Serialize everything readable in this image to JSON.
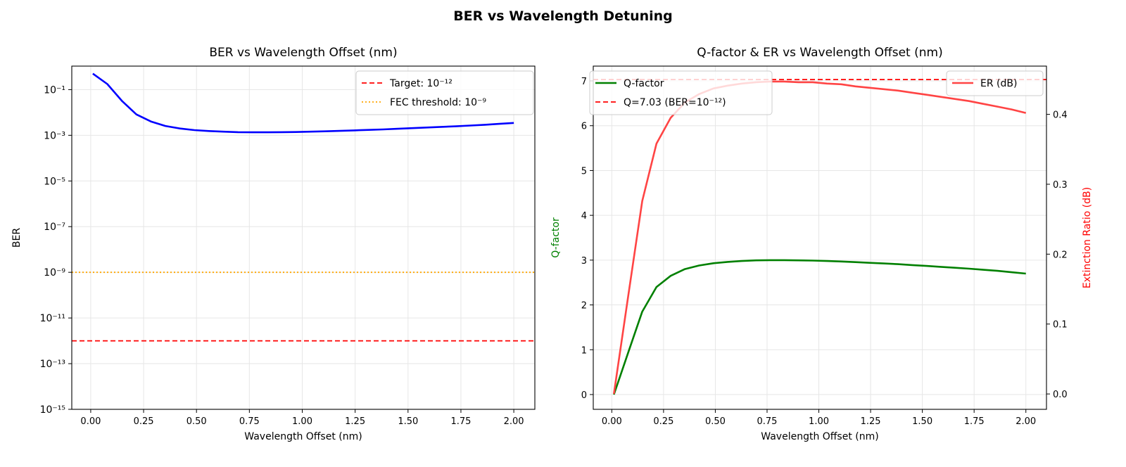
{
  "figure_title": "BER vs Wavelength Detuning",
  "colors": {
    "ber": "#0000ff",
    "target": "#ff0000",
    "fec": "#ffa500",
    "q": "#008000",
    "er": "#ff4444"
  },
  "chart_data": [
    {
      "type": "line",
      "title": "BER vs Wavelength Offset (nm)",
      "xlabel": "Wavelength Offset (nm)",
      "ylabel": "BER",
      "yscale": "log",
      "xlim": [
        -0.0895,
        2.0995
      ],
      "ylim": [
        1e-15,
        1.07
      ],
      "grid": true,
      "legend": "upper right",
      "x_ticks": [
        "0.00",
        "0.25",
        "0.50",
        "0.75",
        "1.00",
        "1.25",
        "1.50",
        "1.75",
        "2.00"
      ],
      "y_ticks": [
        "10⁻¹",
        "10⁻³",
        "10⁻⁵",
        "10⁻⁷",
        "10⁻⁹",
        "10⁻¹¹",
        "10⁻¹³",
        "10⁻¹⁵"
      ],
      "x": [
        0.01,
        0.0786,
        0.1472,
        0.2159,
        0.2845,
        0.3531,
        0.4217,
        0.4903,
        0.559,
        0.6276,
        0.6962,
        0.7648,
        0.8334,
        0.9021,
        0.9707,
        1.0393,
        1.1079,
        1.1766,
        1.2452,
        1.3138,
        1.3824,
        1.451,
        1.5197,
        1.5883,
        1.6569,
        1.7255,
        1.7941,
        1.8628,
        1.9314,
        2.0
      ],
      "series": [
        {
          "values": [
            0.5,
            0.176,
            0.0322,
            0.0082,
            0.00402,
            0.00256,
            0.00199,
            0.00169,
            0.00154,
            0.00144,
            0.00137,
            0.00135,
            0.00135,
            0.00137,
            0.00139,
            0.00144,
            0.00149,
            0.00156,
            0.00164,
            0.00172,
            0.00181,
            0.00193,
            0.00205,
            0.00219,
            0.00233,
            0.00248,
            0.00268,
            0.00289,
            0.00317,
            0.00347
          ]
        }
      ],
      "hlines": [
        {
          "name": "Target: 10⁻¹²",
          "value": 1e-12,
          "style": "dashed"
        },
        {
          "name": "FEC threshold: 10⁻⁹",
          "value": 1e-09,
          "style": "dotted"
        }
      ]
    },
    {
      "type": "line",
      "title": "Q-factor & ER vs Wavelength Offset (nm)",
      "xlabel": "Wavelength Offset (nm)",
      "ylabel": "Q-factor",
      "ylabel_right": "Extinction Ratio (dB)",
      "xlim": [
        -0.0895,
        2.0995
      ],
      "ylim": [
        -0.33,
        7.33
      ],
      "ylim_right": [
        -0.022,
        0.469
      ],
      "grid": true,
      "legend": "upper left / upper right",
      "x_ticks": [
        "0.00",
        "0.25",
        "0.50",
        "0.75",
        "1.00",
        "1.25",
        "1.50",
        "1.75",
        "2.00"
      ],
      "y_ticks": [
        "0",
        "1",
        "2",
        "3",
        "4",
        "5",
        "6",
        "7"
      ],
      "y_ticks_right": [
        "0.0",
        "0.1",
        "0.2",
        "0.3",
        "0.4"
      ],
      "x": [
        0.01,
        0.0786,
        0.1472,
        0.2159,
        0.2845,
        0.3531,
        0.4217,
        0.4903,
        0.559,
        0.6276,
        0.6962,
        0.7648,
        0.8334,
        0.9021,
        0.9707,
        1.0393,
        1.1079,
        1.1766,
        1.2452,
        1.3138,
        1.3824,
        1.451,
        1.5197,
        1.5883,
        1.6569,
        1.7255,
        1.7941,
        1.8628,
        1.9314,
        2.0
      ],
      "series": [
        {
          "name": "Q-factor",
          "axis": "left",
          "values": [
            0,
            0.93,
            1.85,
            2.4,
            2.65,
            2.8,
            2.88,
            2.93,
            2.96,
            2.98,
            2.995,
            3.0,
            3.0,
            2.995,
            2.99,
            2.98,
            2.97,
            2.955,
            2.94,
            2.925,
            2.91,
            2.89,
            2.87,
            2.85,
            2.83,
            2.81,
            2.785,
            2.76,
            2.73,
            2.7
          ]
        },
        {
          "name": "ER (dB)",
          "axis": "right",
          "values": [
            0,
            0.139,
            0.276,
            0.358,
            0.395,
            0.417,
            0.429,
            0.437,
            0.441,
            0.444,
            0.446,
            0.447,
            0.447,
            0.446,
            0.446,
            0.444,
            0.443,
            0.44,
            0.438,
            0.436,
            0.434,
            0.431,
            0.428,
            0.425,
            0.422,
            0.419,
            0.415,
            0.411,
            0.407,
            0.402
          ]
        }
      ],
      "hlines": [
        {
          "name": "Q=7.03 (BER=10⁻¹²)",
          "value": 7.03,
          "style": "dashed"
        }
      ]
    }
  ]
}
